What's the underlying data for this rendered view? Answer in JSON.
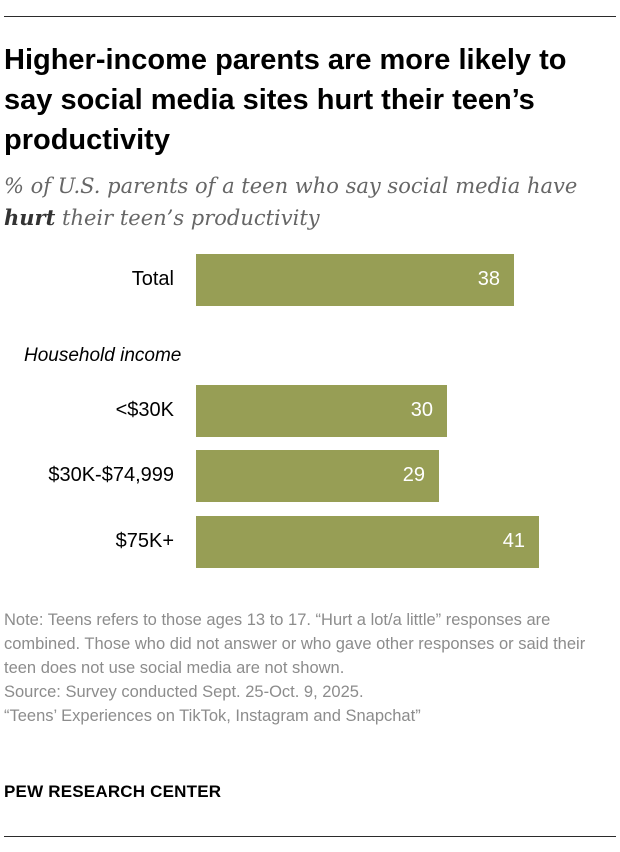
{
  "title": "Higher-income parents are more likely to say social media sites hurt their teen’s productivity",
  "subtitle_parts": {
    "before": "% of U.S. parents of a teen who say social media have",
    "emphasis": "hurt",
    "after": "their teen’s productivity"
  },
  "colors": {
    "bar": "#979e55",
    "bar_text": "#ffffff",
    "notes": "#8c8c8c"
  },
  "chart_data": {
    "type": "bar",
    "orientation": "horizontal",
    "groups": [
      {
        "label": "",
        "categories": [
          "Total"
        ],
        "values": [
          38
        ]
      },
      {
        "label": "Household income",
        "categories": [
          "<$30K",
          "$30K-$74,999",
          "$75K+"
        ],
        "values": [
          30,
          29,
          41
        ]
      }
    ],
    "categories": [
      "Total",
      "<$30K",
      "$30K-$74,999",
      "$75K+"
    ],
    "values": [
      38,
      30,
      29,
      41
    ],
    "data_labels": [
      "38",
      "30",
      "29",
      "41"
    ],
    "xlim": [
      0,
      100
    ],
    "grid": false,
    "legend": "none"
  },
  "notes": {
    "note": "Note: Teens refers to those ages 13 to 17. “Hurt a lot/a little” responses are combined. Those who did not answer or who gave other responses or said their teen does not use social media are not shown.",
    "source": "Source: Survey conducted Sept. 25-Oct. 9, 2025.",
    "report": "“Teens’ Experiences on TikTok, Instagram and Snapchat”"
  },
  "brand": "PEW RESEARCH CENTER"
}
